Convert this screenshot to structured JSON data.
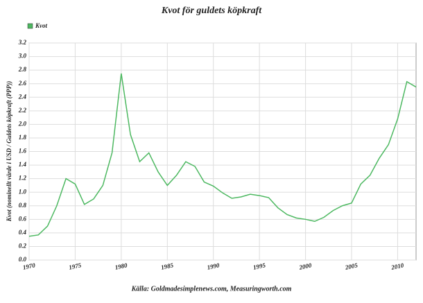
{
  "chart_data": {
    "type": "line",
    "title": "Kvot för guldets köpkraft",
    "y_label": "Kvot (nominellt värde i USD / Guldets köpkraft (PPP))",
    "source": "Källa: Goldmadesimplenews.com, Measuringworth.com",
    "x": [
      1970,
      1971,
      1972,
      1973,
      1974,
      1975,
      1976,
      1977,
      1978,
      1979,
      1980,
      1981,
      1982,
      1983,
      1984,
      1985,
      1986,
      1987,
      1988,
      1989,
      1990,
      1991,
      1992,
      1993,
      1994,
      1995,
      1996,
      1997,
      1998,
      1999,
      2000,
      2001,
      2002,
      2003,
      2004,
      2005,
      2006,
      2007,
      2008,
      2009,
      2010,
      2011,
      2012
    ],
    "series": [
      {
        "name": "Kvot",
        "color": "#4cb860",
        "values": [
          0.35,
          0.37,
          0.5,
          0.8,
          1.2,
          1.12,
          0.82,
          0.9,
          1.1,
          1.58,
          2.75,
          1.85,
          1.45,
          1.58,
          1.3,
          1.1,
          1.25,
          1.45,
          1.38,
          1.15,
          1.09,
          0.99,
          0.91,
          0.93,
          0.97,
          0.95,
          0.92,
          0.77,
          0.67,
          0.62,
          0.6,
          0.57,
          0.63,
          0.73,
          0.8,
          0.84,
          1.12,
          1.25,
          1.5,
          1.7,
          2.08,
          2.63,
          2.55
        ]
      }
    ],
    "xlim": [
      1970,
      2012
    ],
    "xticks": [
      1970,
      1975,
      1980,
      1985,
      1990,
      1995,
      2000,
      2005,
      2010
    ],
    "ylim": [
      0,
      3.2
    ],
    "yticks": [
      {
        "value": 0,
        "label": "0.0"
      },
      0.2,
      0.4,
      0.6,
      0.8,
      {
        "value": 1,
        "label": "1.0"
      },
      1.2,
      1.4,
      1.6,
      1.8,
      {
        "value": 2,
        "label": "2.0"
      },
      2.2,
      2.4,
      2.6,
      2.8,
      {
        "value": 3,
        "label": "3.0"
      },
      3.2
    ],
    "grid": true,
    "legend": "top-left"
  }
}
